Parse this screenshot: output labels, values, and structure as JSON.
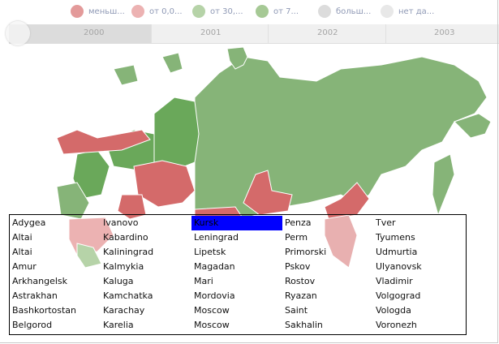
{
  "colors": {
    "less": "#e39a9a",
    "from0": "#ecb2b2",
    "from30": "#b6d3a8",
    "from70": "#a6c995",
    "more": "#dcdcdc",
    "nodata": "#e8e8e8",
    "dark_red": "#d46a6a",
    "dark_green": "#6aa85a",
    "green": "#86b478",
    "selection": "#0000ff"
  },
  "legend": [
    {
      "label": "меньш...",
      "color": "#e39a9a"
    },
    {
      "label": "от 0,0...",
      "color": "#ecb2b2"
    },
    {
      "label": "от 30,...",
      "color": "#b6d3a8"
    },
    {
      "label": "от 7...",
      "color": "#a6c995"
    },
    {
      "label": "больш...",
      "color": "#dcdcdc"
    },
    {
      "label": "нет да...",
      "color": "#e8e8e8"
    }
  ],
  "timeline": {
    "years": [
      "2000",
      "2001",
      "2002",
      "2003"
    ]
  },
  "region_list": {
    "selected": "Kursk",
    "columns": [
      [
        "Adygea",
        "Altai",
        "Altai",
        "Amur",
        "Arkhangelsk",
        "Astrakhan",
        "Bashkortostan",
        "Belgorod"
      ],
      [
        "Ivanovo",
        "Kabardino",
        "Kaliningrad",
        "Kalmykia",
        "Kaluga",
        "Kamchatka",
        "Karachay",
        "Karelia"
      ],
      [
        "Kursk",
        "Leningrad",
        "Lipetsk",
        "Magadan",
        "Mari",
        "Mordovia",
        "Moscow",
        "Moscow"
      ],
      [
        "Penza",
        "Perm",
        "Primorski",
        "Pskov",
        "Rostov",
        "Ryazan",
        "Saint",
        "Sakhalin"
      ],
      [
        "Tver",
        "Tyumens",
        "Udmurtia",
        "Ulyanovsk",
        "Vladimir",
        "Volgograd",
        "Vologda",
        "Voronezh"
      ]
    ]
  }
}
